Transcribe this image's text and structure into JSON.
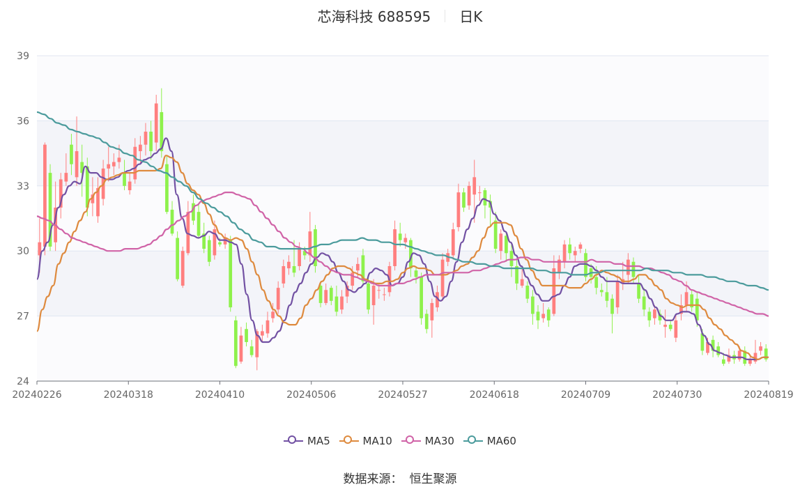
{
  "header": {
    "name": "芯海科技 688595",
    "period": "日K"
  },
  "footer": {
    "source_label": "数据来源：",
    "source_name": "恒生聚源"
  },
  "colors": {
    "up": "#ff7f7f",
    "down": "#8ef14c",
    "ma5": "#7251a3",
    "ma10": "#de8a3e",
    "ma30": "#d063a7",
    "ma60": "#4b9b9c"
  },
  "chart_data": {
    "type": "candlestick",
    "ylim": [
      24,
      39
    ],
    "yticks": [
      24,
      27,
      30,
      33,
      36,
      39
    ],
    "xticks": [
      "20240226",
      "20240318",
      "20240410",
      "20240506",
      "20240527",
      "20240618",
      "20240709",
      "20240730",
      "20240819"
    ],
    "candles": [
      [
        29.8,
        30.4,
        29.0,
        31.5
      ],
      [
        30.2,
        34.9,
        29.8,
        35.0
      ],
      [
        33.6,
        30.2,
        30.0,
        34.0
      ],
      [
        30.4,
        32.0,
        30.0,
        33.2
      ],
      [
        32.0,
        33.3,
        31.5,
        33.6
      ],
      [
        33.2,
        33.6,
        33.0,
        34.5
      ],
      [
        34.9,
        34.0,
        33.5,
        35.4
      ],
      [
        33.4,
        34.6,
        33.0,
        36.2
      ],
      [
        34.1,
        33.6,
        32.5,
        34.9
      ],
      [
        33.9,
        32.0,
        31.6,
        34.3
      ],
      [
        32.2,
        32.6,
        31.6,
        33.4
      ],
      [
        31.6,
        32.9,
        31.3,
        33.4
      ],
      [
        32.4,
        33.8,
        32.1,
        34.2
      ],
      [
        33.8,
        34.0,
        33.2,
        34.8
      ],
      [
        33.9,
        34.1,
        33.5,
        34.5
      ],
      [
        34.1,
        34.3,
        33.8,
        34.9
      ],
      [
        33.6,
        33.0,
        32.8,
        34.2
      ],
      [
        32.8,
        33.2,
        32.6,
        33.6
      ],
      [
        33.3,
        34.8,
        33.1,
        35.2
      ],
      [
        34.6,
        34.9,
        34.0,
        35.3
      ],
      [
        34.9,
        35.5,
        34.4,
        35.9
      ],
      [
        35.5,
        34.6,
        34.2,
        36.0
      ],
      [
        35.0,
        36.8,
        34.6,
        37.2
      ],
      [
        36.4,
        34.6,
        34.3,
        37.5
      ],
      [
        34.0,
        31.8,
        31.7,
        34.4
      ],
      [
        31.9,
        30.8,
        30.7,
        32.3
      ],
      [
        30.6,
        28.7,
        28.6,
        30.9
      ],
      [
        28.4,
        30.0,
        28.3,
        30.2
      ],
      [
        29.9,
        31.8,
        29.8,
        32.3
      ],
      [
        32.2,
        31.4,
        31.2,
        32.6
      ],
      [
        31.8,
        30.7,
        30.6,
        32.2
      ],
      [
        30.8,
        30.1,
        29.9,
        31.3
      ],
      [
        30.5,
        29.5,
        29.3,
        30.7
      ],
      [
        29.8,
        31.0,
        29.6,
        31.4
      ],
      [
        30.4,
        30.3,
        30.2,
        30.6
      ],
      [
        30.3,
        30.6,
        30.1,
        30.8
      ],
      [
        30.5,
        27.4,
        27.2,
        30.7
      ],
      [
        26.8,
        24.7,
        24.6,
        27.0
      ],
      [
        24.9,
        26.1,
        24.8,
        26.5
      ],
      [
        26.4,
        25.8,
        25.6,
        26.7
      ],
      [
        25.6,
        25.2,
        25.1,
        25.9
      ],
      [
        25.1,
        26.3,
        24.5,
        26.4
      ],
      [
        26.1,
        26.3,
        25.8,
        26.6
      ],
      [
        26.2,
        26.8,
        26.0,
        27.2
      ],
      [
        26.9,
        27.2,
        26.7,
        27.6
      ],
      [
        27.3,
        28.3,
        27.1,
        28.6
      ],
      [
        28.5,
        29.3,
        28.3,
        29.6
      ],
      [
        29.2,
        29.5,
        28.9,
        29.8
      ],
      [
        29.3,
        29.0,
        28.8,
        30.5
      ],
      [
        29.3,
        30.1,
        29.1,
        30.4
      ],
      [
        30.0,
        29.8,
        29.6,
        30.2
      ],
      [
        29.8,
        30.9,
        29.5,
        31.8
      ],
      [
        31.0,
        29.3,
        29.0,
        31.2
      ],
      [
        28.4,
        27.6,
        27.4,
        28.6
      ],
      [
        27.6,
        28.2,
        27.5,
        28.5
      ],
      [
        28.3,
        27.7,
        27.5,
        28.4
      ],
      [
        27.9,
        27.2,
        27.0,
        28.4
      ],
      [
        27.3,
        27.9,
        27.1,
        28.2
      ],
      [
        27.9,
        28.4,
        27.6,
        28.6
      ],
      [
        28.4,
        29.0,
        28.2,
        29.3
      ],
      [
        29.1,
        29.4,
        28.8,
        29.7
      ],
      [
        29.8,
        28.6,
        28.4,
        30.1
      ],
      [
        28.5,
        27.3,
        27.1,
        28.8
      ],
      [
        27.5,
        28.4,
        26.6,
        28.7
      ],
      [
        28.2,
        28.2,
        27.8,
        28.5
      ],
      [
        28.0,
        28.0,
        27.7,
        28.3
      ],
      [
        28.1,
        29.3,
        27.9,
        29.5
      ],
      [
        29.3,
        31.0,
        29.1,
        31.4
      ],
      [
        30.8,
        30.5,
        30.2,
        31.3
      ],
      [
        30.4,
        30.6,
        30.1,
        30.8
      ],
      [
        30.5,
        29.2,
        28.8,
        30.6
      ],
      [
        29.1,
        28.8,
        28.5,
        29.3
      ],
      [
        28.8,
        26.9,
        26.6,
        29.0
      ],
      [
        27.1,
        26.4,
        26.2,
        27.3
      ],
      [
        26.8,
        27.6,
        26.0,
        27.8
      ],
      [
        27.4,
        28.1,
        27.2,
        28.4
      ],
      [
        27.9,
        29.6,
        27.7,
        29.9
      ],
      [
        29.5,
        29.9,
        29.3,
        30.1
      ],
      [
        29.8,
        31.0,
        29.6,
        31.3
      ],
      [
        31.1,
        32.7,
        30.9,
        33.1
      ],
      [
        32.7,
        32.0,
        31.8,
        32.9
      ],
      [
        32.1,
        33.0,
        31.9,
        33.2
      ],
      [
        32.6,
        33.4,
        31.3,
        34.2
      ],
      [
        32.7,
        32.7,
        32.3,
        33.0
      ],
      [
        32.8,
        32.1,
        31.5,
        32.9
      ],
      [
        32.3,
        32.0,
        31.1,
        32.6
      ],
      [
        31.4,
        30.1,
        29.9,
        31.8
      ],
      [
        30.0,
        30.8,
        29.6,
        31.0
      ],
      [
        30.7,
        29.9,
        29.5,
        30.9
      ],
      [
        30.0,
        29.3,
        28.8,
        30.4
      ],
      [
        29.3,
        28.5,
        28.2,
        29.6
      ],
      [
        28.4,
        28.7,
        28.3,
        29.2
      ],
      [
        28.4,
        27.8,
        27.6,
        28.6
      ],
      [
        27.9,
        27.1,
        26.6,
        28.2
      ],
      [
        27.2,
        26.8,
        26.4,
        27.5
      ],
      [
        26.9,
        27.1,
        26.7,
        27.6
      ],
      [
        27.3,
        26.8,
        26.5,
        27.4
      ],
      [
        27.1,
        29.2,
        27.0,
        29.8
      ],
      [
        29.0,
        29.6,
        28.7,
        29.8
      ],
      [
        29.5,
        30.3,
        29.2,
        30.5
      ],
      [
        30.3,
        29.9,
        29.6,
        30.6
      ],
      [
        29.8,
        30.0,
        29.5,
        30.2
      ],
      [
        30.1,
        30.3,
        29.9,
        30.4
      ],
      [
        29.9,
        28.8,
        28.6,
        30.1
      ],
      [
        29.2,
        28.8,
        28.5,
        29.4
      ],
      [
        28.8,
        28.3,
        28.0,
        29.3
      ],
      [
        28.2,
        28.1,
        27.9,
        28.5
      ],
      [
        28.1,
        27.7,
        27.4,
        28.8
      ],
      [
        27.8,
        27.1,
        26.2,
        28.0
      ],
      [
        27.4,
        28.6,
        27.1,
        28.9
      ],
      [
        28.5,
        28.7,
        28.2,
        29.5
      ],
      [
        28.9,
        29.6,
        28.5,
        29.9
      ],
      [
        29.5,
        28.8,
        28.5,
        29.7
      ],
      [
        28.5,
        27.8,
        27.6,
        28.9
      ],
      [
        27.9,
        27.3,
        27.0,
        28.3
      ],
      [
        27.2,
        26.8,
        26.5,
        27.4
      ],
      [
        26.9,
        27.3,
        26.6,
        27.5
      ],
      [
        27.1,
        26.8,
        26.6,
        27.3
      ],
      [
        26.5,
        26.6,
        26.0,
        27.3
      ],
      [
        26.6,
        26.4,
        26.3,
        26.8
      ],
      [
        26.0,
        26.8,
        25.8,
        27.1
      ],
      [
        27.1,
        27.5,
        26.8,
        28.0
      ],
      [
        27.5,
        28.1,
        27.2,
        28.6
      ],
      [
        28.0,
        27.4,
        27.2,
        28.2
      ],
      [
        27.8,
        26.8,
        26.5,
        28.1
      ],
      [
        26.2,
        25.4,
        25.2,
        26.4
      ],
      [
        25.3,
        25.8,
        25.2,
        26.0
      ],
      [
        25.9,
        25.4,
        25.1,
        26.1
      ],
      [
        25.6,
        25.2,
        25.1,
        25.8
      ],
      [
        25.0,
        24.8,
        24.7,
        25.3
      ],
      [
        24.9,
        25.2,
        24.8,
        25.5
      ],
      [
        25.2,
        25.0,
        24.8,
        25.4
      ],
      [
        25.0,
        25.4,
        24.9,
        25.6
      ],
      [
        25.4,
        24.8,
        24.7,
        25.6
      ],
      [
        24.8,
        25.0,
        24.7,
        25.2
      ],
      [
        24.9,
        25.3,
        24.8,
        25.9
      ],
      [
        25.4,
        25.6,
        25.2,
        25.8
      ],
      [
        25.5,
        25.0,
        24.9,
        25.7
      ]
    ],
    "series": [
      {
        "name": "MA5",
        "values": [
          28.7,
          30.0,
          30.4,
          31.2,
          32.0,
          32.6,
          33.0,
          33.2,
          33.1,
          33.9,
          33.6,
          33.6,
          33.4,
          33.3,
          33.3,
          33.4,
          33.6,
          33.7,
          33.8,
          34.0,
          34.2,
          34.3,
          34.5,
          34.7,
          35.2,
          34.6,
          32.6,
          31.5,
          30.8,
          30.7,
          30.6,
          30.7,
          30.9,
          30.8,
          30.5,
          30.5,
          30.4,
          30.3,
          29.4,
          28.0,
          26.8,
          26.1,
          25.8,
          25.8,
          26.0,
          26.3,
          26.8,
          27.5,
          28.1,
          28.5,
          29.0,
          29.4,
          29.7,
          29.9,
          29.8,
          29.5,
          29.0,
          28.6,
          28.2,
          28.1,
          28.3,
          28.5,
          29.0,
          29.2,
          29.1,
          28.9,
          28.4,
          28.5,
          28.8,
          29.5,
          29.9,
          29.8,
          29.4,
          28.6,
          27.9,
          27.7,
          27.9,
          28.6,
          29.5,
          30.4,
          31.0,
          31.5,
          32.1,
          32.4,
          32.3,
          31.7,
          31.4,
          30.9,
          30.4,
          29.8,
          29.3,
          28.8,
          28.4,
          28.0,
          27.7,
          27.7,
          27.9,
          28.0,
          28.4,
          28.8,
          29.3,
          29.4,
          29.4,
          29.3,
          29.1,
          28.8,
          28.6,
          28.6,
          28.6,
          28.5,
          28.5,
          28.5,
          28.5,
          28.2,
          27.8,
          27.4,
          27.0,
          26.8,
          26.8,
          27.1,
          27.2,
          27.2,
          27.1,
          26.6,
          26.1,
          25.7,
          25.4,
          25.3,
          25.2,
          25.1,
          25.1,
          25.1,
          25.0,
          25.0,
          25.0,
          25.1,
          25.1
        ]
      },
      {
        "name": "MA10",
        "values": [
          26.3,
          27.3,
          27.9,
          28.4,
          29.4,
          29.9,
          30.4,
          30.9,
          31.4,
          31.8,
          32.4,
          32.7,
          33.0,
          33.3,
          33.4,
          33.5,
          33.6,
          33.6,
          33.6,
          33.7,
          33.7,
          33.7,
          33.7,
          33.8,
          34.4,
          34.3,
          34.1,
          33.6,
          33.1,
          32.8,
          32.6,
          32.2,
          31.7,
          31.2,
          30.8,
          30.6,
          30.5,
          30.6,
          30.5,
          30.1,
          29.5,
          28.9,
          28.2,
          27.7,
          27.3,
          27.0,
          26.7,
          26.6,
          26.6,
          26.9,
          27.5,
          27.8,
          28.2,
          28.6,
          28.9,
          29.2,
          29.3,
          29.3,
          29.2,
          29.0,
          28.9,
          28.7,
          28.6,
          28.5,
          28.5,
          28.6,
          28.6,
          28.7,
          29.0,
          29.2,
          29.3,
          29.2,
          29.2,
          29.1,
          28.9,
          28.9,
          28.9,
          29.0,
          29.1,
          29.3,
          29.4,
          29.7,
          30.0,
          30.6,
          31.1,
          31.3,
          31.3,
          31.3,
          31.2,
          30.7,
          30.1,
          29.6,
          29.1,
          28.7,
          28.4,
          28.4,
          28.4,
          28.4,
          28.4,
          28.3,
          28.3,
          28.3,
          28.5,
          28.7,
          28.9,
          29.1,
          29.0,
          28.9,
          28.8,
          28.6,
          28.6,
          28.7,
          28.9,
          28.9,
          28.7,
          28.4,
          28.2,
          27.8,
          27.6,
          27.5,
          27.4,
          27.5,
          27.5,
          27.5,
          27.3,
          26.9,
          26.6,
          26.4,
          26.1,
          25.9,
          25.7,
          25.4,
          25.3,
          25.1,
          25.0,
          25.1,
          25.1
        ]
      },
      {
        "name": "MA30",
        "values": [
          31.6,
          31.5,
          31.4,
          31.2,
          31.0,
          30.8,
          30.6,
          30.5,
          30.4,
          30.3,
          30.2,
          30.1,
          30.0,
          30.0,
          30.0,
          30.1,
          30.1,
          30.1,
          30.2,
          30.3,
          30.5,
          30.7,
          31.0,
          31.2,
          31.4,
          31.6,
          31.8,
          32.1,
          32.3,
          32.4,
          32.5,
          32.6,
          32.7,
          32.7,
          32.6,
          32.5,
          32.4,
          32.1,
          31.8,
          31.5,
          31.2,
          30.9,
          30.6,
          30.4,
          30.2,
          30.1,
          29.9,
          29.7,
          29.5,
          29.3,
          29.1,
          29.0,
          28.9,
          28.9,
          28.8,
          28.7,
          28.6,
          28.5,
          28.4,
          28.4,
          28.4,
          28.5,
          28.5,
          28.6,
          28.7,
          28.8,
          28.9,
          28.9,
          28.9,
          29.0,
          29.0,
          29.0,
          29.0,
          29.0,
          29.1,
          29.1,
          29.2,
          29.3,
          29.4,
          29.5,
          29.6,
          29.6,
          29.7,
          29.7,
          29.6,
          29.6,
          29.5,
          29.5,
          29.5,
          29.5,
          29.5,
          29.5,
          29.5,
          29.5,
          29.6,
          29.5,
          29.5,
          29.5,
          29.4,
          29.4,
          29.3,
          29.3,
          29.3,
          29.2,
          29.2,
          29.1,
          29.0,
          28.9,
          28.7,
          28.6,
          28.4,
          28.2,
          28.1,
          28.0,
          27.9,
          27.8,
          27.7,
          27.6,
          27.5,
          27.4,
          27.3,
          27.2,
          27.1,
          27.1,
          27.0
        ]
      },
      {
        "name": "MA60",
        "values": [
          36.4,
          36.3,
          36.1,
          35.9,
          35.8,
          35.6,
          35.5,
          35.4,
          35.3,
          35.2,
          35.0,
          34.8,
          34.7,
          34.5,
          34.4,
          34.2,
          34.1,
          33.9,
          33.7,
          33.6,
          33.4,
          33.2,
          33.0,
          32.7,
          32.4,
          32.2,
          32.0,
          31.8,
          31.6,
          31.3,
          31.0,
          30.8,
          30.5,
          30.4,
          30.2,
          30.2,
          30.1,
          30.1,
          30.1,
          30.1,
          30.1,
          30.2,
          30.3,
          30.3,
          30.4,
          30.5,
          30.5,
          30.5,
          30.6,
          30.5,
          30.5,
          30.4,
          30.4,
          30.3,
          30.3,
          30.2,
          30.1,
          30.0,
          29.9,
          29.8,
          29.8,
          29.7,
          29.6,
          29.5,
          29.5,
          29.4,
          29.4,
          29.3,
          29.3,
          29.2,
          29.2,
          29.2,
          29.2,
          29.2,
          29.1,
          29.1,
          29.0,
          29.0,
          29.0,
          28.9,
          28.9,
          28.9,
          29.0,
          29.0,
          29.1,
          29.1,
          29.1,
          29.1,
          29.1,
          29.1,
          29.2,
          29.1,
          29.1,
          29.1,
          29.0,
          29.0,
          28.9,
          28.9,
          28.9,
          28.8,
          28.8,
          28.7,
          28.6,
          28.6,
          28.5,
          28.4,
          28.4,
          28.3,
          28.2
        ]
      }
    ]
  }
}
